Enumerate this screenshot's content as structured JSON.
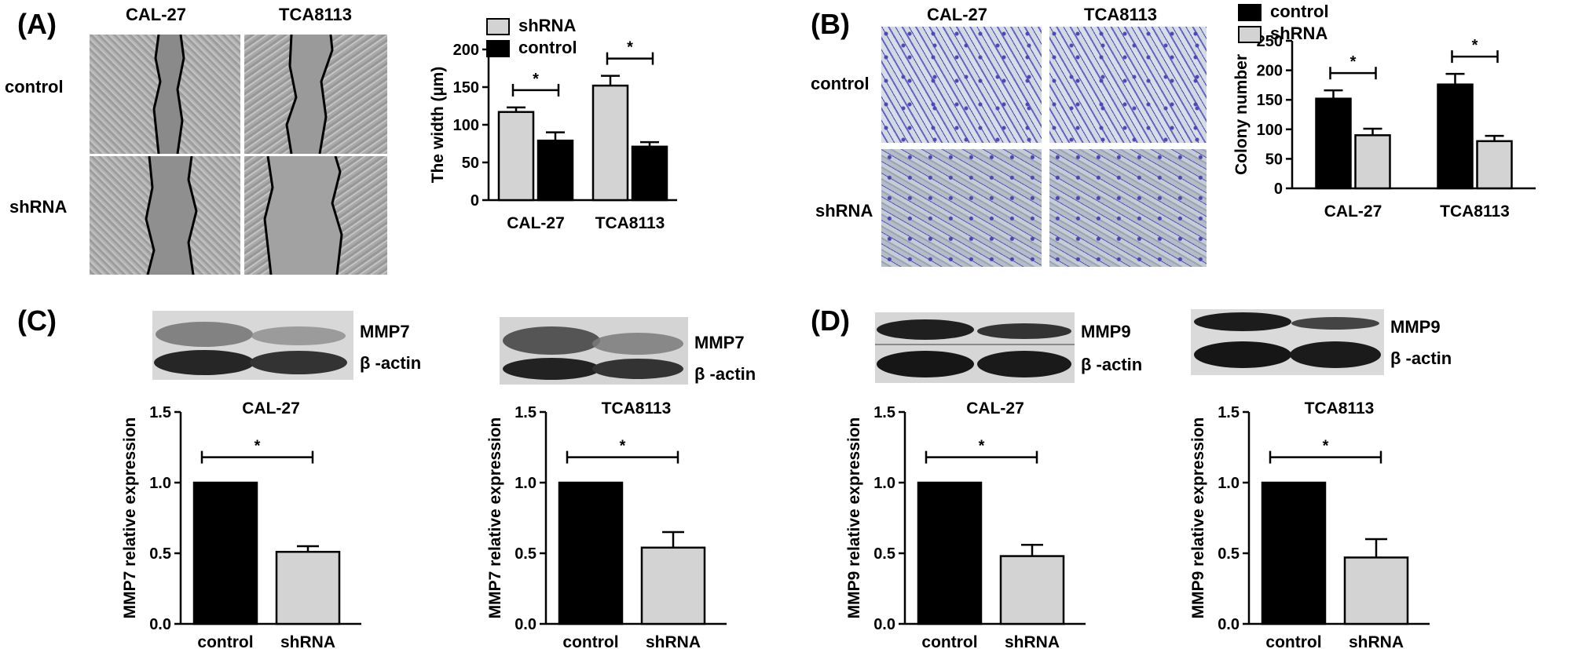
{
  "panels": {
    "a": {
      "label": "(A)",
      "image_col_labels": [
        "CAL-27",
        "TCA8113"
      ],
      "image_row_labels": [
        "control",
        "shRNA"
      ]
    },
    "b": {
      "label": "(B)",
      "image_col_labels": [
        "CAL-27",
        "TCA8113"
      ],
      "image_row_labels": [
        "control",
        "shRNA"
      ]
    },
    "c": {
      "label": "(C)",
      "blot1_labels": [
        "MMP7",
        "β -actin"
      ],
      "blot2_labels": [
        "MMP7",
        "β -actin"
      ]
    },
    "d": {
      "label": "(D)",
      "blot1_labels": [
        "MMP9",
        "β -actin"
      ],
      "blot2_labels": [
        "MMP9",
        "β -actin"
      ]
    }
  },
  "colors": {
    "control": "#000000",
    "shRNA": "#d3d3d3"
  },
  "chart_data": [
    {
      "id": "a",
      "type": "bar",
      "title": "",
      "xlabel": "",
      "ylabel": "The width (µm)",
      "ylim": [
        0,
        200
      ],
      "yticks": [
        0,
        50,
        100,
        150,
        200
      ],
      "categories": [
        "CAL-27",
        "TCA8113"
      ],
      "series": [
        {
          "name": "shRNA",
          "values": [
            117,
            152
          ],
          "errors": [
            6,
            13
          ],
          "color": "#d3d3d3"
        },
        {
          "name": "control",
          "values": [
            79,
            71
          ],
          "errors": [
            11,
            6
          ],
          "color": "#000000"
        }
      ],
      "legend_position": "top-left",
      "significance": [
        "*",
        "*"
      ]
    },
    {
      "id": "b",
      "type": "bar",
      "title": "",
      "xlabel": "",
      "ylabel": "Colony number",
      "ylim": [
        0,
        250
      ],
      "yticks": [
        0,
        50,
        100,
        150,
        200,
        250
      ],
      "categories": [
        "CAL-27",
        "TCA8113"
      ],
      "series": [
        {
          "name": "control",
          "values": [
            152,
            176
          ],
          "errors": [
            14,
            18
          ],
          "color": "#000000"
        },
        {
          "name": "shRNA",
          "values": [
            90,
            80
          ],
          "errors": [
            11,
            9
          ],
          "color": "#d3d3d3"
        }
      ],
      "legend_position": "top-left",
      "significance": [
        "*",
        "*"
      ]
    },
    {
      "id": "c1",
      "type": "bar",
      "title": "CAL-27",
      "xlabel": "",
      "ylabel": "MMP7 relative expression",
      "ylim": [
        0,
        1.5
      ],
      "yticks": [
        "0.0",
        "0.5",
        "1.0",
        "1.5"
      ],
      "categories": [
        "control",
        "shRNA"
      ],
      "values": [
        1.0,
        0.51
      ],
      "errors": [
        0,
        0.04
      ],
      "colors": [
        "#000000",
        "#d3d3d3"
      ],
      "significance": "*"
    },
    {
      "id": "c2",
      "type": "bar",
      "title": "TCA8113",
      "xlabel": "",
      "ylabel": "MMP7 relative expression",
      "ylim": [
        0,
        1.5
      ],
      "yticks": [
        "0.0",
        "0.5",
        "1.0",
        "1.5"
      ],
      "categories": [
        "control",
        "shRNA"
      ],
      "values": [
        1.0,
        0.54
      ],
      "errors": [
        0,
        0.11
      ],
      "colors": [
        "#000000",
        "#d3d3d3"
      ],
      "significance": "*"
    },
    {
      "id": "d1",
      "type": "bar",
      "title": "CAL-27",
      "xlabel": "",
      "ylabel": "MMP9 relative expression",
      "ylim": [
        0,
        1.5
      ],
      "yticks": [
        "0.0",
        "0.5",
        "1.0",
        "1.5"
      ],
      "categories": [
        "control",
        "shRNA"
      ],
      "values": [
        1.0,
        0.48
      ],
      "errors": [
        0,
        0.08
      ],
      "colors": [
        "#000000",
        "#d3d3d3"
      ],
      "significance": "*"
    },
    {
      "id": "d2",
      "type": "bar",
      "title": "TCA8113",
      "xlabel": "",
      "ylabel": "MMP9 relative expression",
      "ylim": [
        0,
        1.5
      ],
      "yticks": [
        "0.0",
        "0.5",
        "1.0",
        "1.5"
      ],
      "categories": [
        "control",
        "shRNA"
      ],
      "values": [
        1.0,
        0.47
      ],
      "errors": [
        0,
        0.13
      ],
      "colors": [
        "#000000",
        "#d3d3d3"
      ],
      "significance": "*"
    }
  ]
}
